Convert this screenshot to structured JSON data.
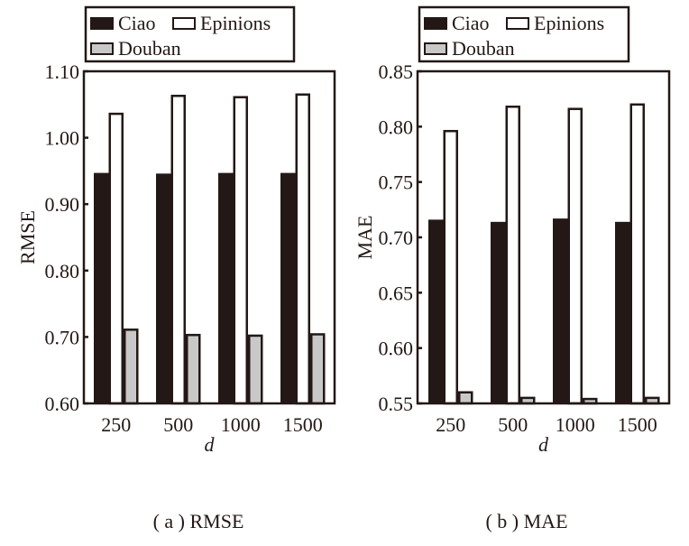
{
  "chart_data": [
    {
      "type": "bar",
      "panel": "a",
      "caption": "( a ) RMSE",
      "title": "",
      "xlabel": "d",
      "ylabel": "RMSE",
      "categories": [
        "250",
        "500",
        "1000",
        "1500"
      ],
      "ylim": [
        0.6,
        1.1
      ],
      "yticks": [
        0.6,
        0.7,
        0.8,
        0.9,
        1.0,
        1.1
      ],
      "ytick_labels": [
        "0.60",
        "0.70",
        "0.80",
        "0.90",
        "1.00",
        "1.10"
      ],
      "grid": false,
      "legend_position": "top",
      "series": [
        {
          "name": "Ciao",
          "color": "#231815",
          "values": [
            0.947,
            0.946,
            0.947,
            0.947
          ]
        },
        {
          "name": "Epinions",
          "color": "#ffffff",
          "values": [
            1.036,
            1.063,
            1.061,
            1.065
          ]
        },
        {
          "name": "Douban",
          "color": "#c8c8c8",
          "values": [
            0.711,
            0.703,
            0.702,
            0.704
          ]
        }
      ]
    },
    {
      "type": "bar",
      "panel": "b",
      "caption": "( b ) MAE",
      "title": "",
      "xlabel": "d",
      "ylabel": "MAE",
      "categories": [
        "250",
        "500",
        "1000",
        "1500"
      ],
      "ylim": [
        0.55,
        0.85
      ],
      "yticks": [
        0.55,
        0.6,
        0.65,
        0.7,
        0.75,
        0.8,
        0.85
      ],
      "ytick_labels": [
        "0.55",
        "0.60",
        "0.65",
        "0.70",
        "0.75",
        "0.80",
        "0.85"
      ],
      "grid": false,
      "legend_position": "top",
      "series": [
        {
          "name": "Ciao",
          "color": "#231815",
          "values": [
            0.716,
            0.714,
            0.717,
            0.714
          ]
        },
        {
          "name": "Epinions",
          "color": "#ffffff",
          "values": [
            0.796,
            0.818,
            0.816,
            0.82
          ]
        },
        {
          "name": "Douban",
          "color": "#c8c8c8",
          "values": [
            0.56,
            0.555,
            0.554,
            0.555
          ]
        }
      ]
    }
  ]
}
